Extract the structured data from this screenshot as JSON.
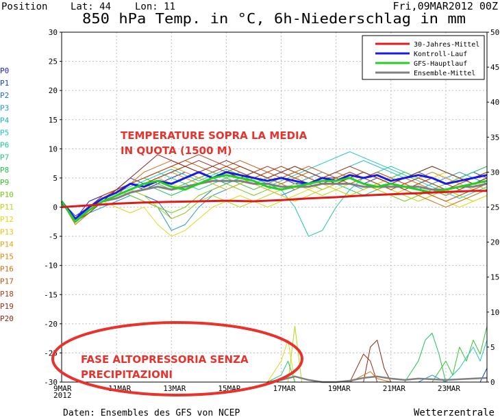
{
  "header": {
    "position_label": "Position",
    "lat_label": "Lat: 44",
    "lon_label": "Lon: 11",
    "date_label": "Fri,09MAR2012 00Z",
    "title": "850 hPa Temp. in °C, 6h-Niederschlag in mm"
  },
  "footer": {
    "source": "Daten: Ensembles des GFS von NCEP",
    "brand": "Wetterzentrale"
  },
  "annotations": {
    "temp_line1": "TEMPERATURE SOPRA LA MEDIA",
    "temp_line2": "IN QUOTA (1500 M)",
    "precip_line1": "FASE ALTOPRESSORIA SENZA",
    "precip_line2": "PRECIPITAZIONI",
    "color": "#e8322b"
  },
  "members": [
    {
      "name": "P0",
      "color": "#1a1ad6"
    },
    {
      "name": "P1",
      "color": "#1a3cd6"
    },
    {
      "name": "P2",
      "color": "#1f6bd6"
    },
    {
      "name": "P3",
      "color": "#1f95d6"
    },
    {
      "name": "P4",
      "color": "#18b4d0"
    },
    {
      "name": "P5",
      "color": "#19c8c0"
    },
    {
      "name": "P6",
      "color": "#1bc8a0"
    },
    {
      "name": "P7",
      "color": "#1fc878"
    },
    {
      "name": "P8",
      "color": "#22c450"
    },
    {
      "name": "P9",
      "color": "#36c428"
    },
    {
      "name": "P10",
      "color": "#74cc16"
    },
    {
      "name": "P11",
      "color": "#b8d814"
    },
    {
      "name": "P12",
      "color": "#e4d812"
    },
    {
      "name": "P13",
      "color": "#e8c210"
    },
    {
      "name": "P14",
      "color": "#e8a60e"
    },
    {
      "name": "P15",
      "color": "#e0880c"
    },
    {
      "name": "P16",
      "color": "#d66c0c"
    },
    {
      "name": "P17",
      "color": "#c8520e"
    },
    {
      "name": "P18",
      "color": "#b63c12"
    },
    {
      "name": "P19",
      "color": "#a42c14"
    },
    {
      "name": "P20",
      "color": "#902216"
    }
  ],
  "chart_data": {
    "type": "line",
    "x_unit": "days since 9 MAR 2012 00Z",
    "x_range": [
      0,
      15.5
    ],
    "x_ticks": [
      {
        "label": "9MAR",
        "label2": "2012",
        "x": 0
      },
      {
        "label": "11MAR",
        "x": 2
      },
      {
        "label": "13MAR",
        "x": 4
      },
      {
        "label": "15MAR",
        "x": 6
      },
      {
        "label": "17MAR",
        "x": 8
      },
      {
        "label": "19MAR",
        "x": 10
      },
      {
        "label": "21MAR",
        "x": 12
      },
      {
        "label": "23MAR",
        "x": 14
      }
    ],
    "y_left": {
      "min": -30,
      "max": 30,
      "step": 5
    },
    "y_right": {
      "min": 0,
      "max": 50,
      "step": 5
    },
    "legend": {
      "position": "top-right",
      "entries": [
        {
          "label": "30-Jahres-Mittel",
          "color": "#e01a1a"
        },
        {
          "label": "Kontroll-Lauf",
          "color": "#1a1ae0"
        },
        {
          "label": "GFS-Hauptlauf",
          "color": "#22d022"
        },
        {
          "label": "Ensemble-Mittel",
          "color": "#808080"
        }
      ]
    },
    "series": {
      "climatology": {
        "x": [
          0,
          1,
          2,
          3,
          4,
          5,
          6,
          7,
          8,
          9,
          10,
          11,
          12,
          13,
          14,
          15,
          15.5
        ],
        "y": [
          0,
          0.3,
          0.6,
          0.8,
          0.9,
          1.0,
          1.1,
          1.0,
          1.2,
          1.5,
          1.7,
          2.0,
          2.2,
          2.4,
          2.6,
          2.8,
          2.8
        ]
      },
      "control": {
        "x": [
          0,
          0.5,
          1,
          1.5,
          2,
          2.5,
          3,
          3.5,
          4,
          4.5,
          5,
          5.5,
          6,
          6.5,
          7,
          7.5,
          8,
          8.5,
          9,
          9.5,
          10,
          10.5,
          11,
          11.5,
          12,
          12.5,
          13,
          13.5,
          14,
          14.5,
          15,
          15.5
        ],
        "y": [
          1,
          -2,
          0,
          1.5,
          2.5,
          4,
          3.5,
          4.5,
          4,
          5,
          6,
          5,
          6,
          5.5,
          5,
          4.5,
          5,
          4.5,
          4,
          5,
          4.5,
          5.5,
          5,
          5.5,
          4.5,
          5,
          5.5,
          5,
          4,
          4.5,
          5,
          5.5
        ]
      },
      "operational": {
        "x": [
          0,
          0.5,
          1,
          1.5,
          2,
          2.5,
          3,
          3.5,
          4,
          4.5,
          5,
          5.5,
          6,
          6.5,
          7,
          7.5,
          8,
          8.5,
          9,
          9.5,
          10,
          10.5,
          11,
          11.5,
          12,
          12.5,
          13,
          13.5,
          14,
          14.5,
          15,
          15.5
        ],
        "y": [
          1,
          -2.5,
          -0.5,
          1,
          2,
          3,
          4,
          4.5,
          3.5,
          3,
          4,
          5,
          5.5,
          5,
          4.5,
          3.5,
          3,
          3.5,
          4,
          4.5,
          4.5,
          5,
          4,
          3.5,
          4,
          3.5,
          3,
          2.5,
          3,
          3.5,
          4,
          4.5
        ]
      },
      "ensemble_mean": {
        "x": [
          0,
          0.5,
          1,
          1.5,
          2,
          2.5,
          3,
          3.5,
          4,
          4.5,
          5,
          5.5,
          6,
          6.5,
          7,
          7.5,
          8,
          8.5,
          9,
          9.5,
          10,
          10.5,
          11,
          11.5,
          12,
          12.5,
          13,
          13.5,
          14,
          14.5,
          15,
          15.5
        ],
        "y": [
          1,
          -2.5,
          -0.5,
          1,
          1.5,
          2.5,
          3,
          3.5,
          3,
          3.5,
          4,
          4.5,
          4.5,
          4.5,
          4,
          4,
          3.5,
          3.5,
          3.5,
          4,
          4,
          4,
          3.5,
          3.5,
          3.5,
          3.5,
          3.5,
          3,
          3,
          3.5,
          3.5,
          4
        ]
      },
      "member_temps": [
        [
          0.5,
          -2,
          1,
          2,
          3,
          4,
          3,
          4,
          5,
          6,
          5,
          6,
          7,
          6,
          5,
          4,
          5,
          4,
          4,
          5,
          5,
          6,
          5,
          6,
          5,
          4,
          5,
          6,
          5,
          4,
          5,
          6
        ],
        [
          1,
          -1.5,
          0,
          2,
          3,
          5,
          4,
          5,
          4,
          5,
          6,
          5,
          4,
          5,
          6,
          5,
          4,
          3,
          4,
          5,
          6,
          5,
          4,
          5,
          4,
          5,
          6,
          5,
          4,
          5,
          6,
          5
        ],
        [
          1,
          -2.5,
          -1,
          1,
          2,
          3,
          2,
          1,
          -2,
          -1,
          1,
          3,
          4,
          5,
          4,
          3,
          2,
          3,
          4,
          3,
          4,
          5,
          4,
          3,
          4,
          5,
          4,
          3,
          2,
          3,
          4,
          5
        ],
        [
          1,
          -3,
          -1,
          0,
          1,
          2,
          1,
          0,
          -4,
          -3,
          0,
          2,
          3,
          4,
          5,
          4,
          3,
          4,
          5,
          6,
          5,
          4,
          3,
          4,
          5,
          4,
          3,
          4,
          5,
          6,
          5,
          4
        ],
        [
          1,
          -2,
          0,
          1,
          2,
          3,
          4,
          5,
          6,
          7,
          6,
          5,
          6,
          7,
          6,
          5,
          6,
          7,
          6,
          5,
          6,
          7,
          8,
          7,
          6,
          5,
          6,
          7,
          6,
          5,
          6,
          7
        ],
        [
          1,
          -2.5,
          -0.5,
          1.5,
          2.5,
          3.5,
          4.5,
          5.5,
          6.5,
          5.5,
          4.5,
          5.5,
          6.5,
          5.5,
          4.5,
          3.5,
          4.5,
          5.5,
          6.5,
          7.5,
          8.5,
          9.5,
          8.5,
          7.5,
          6.5,
          5.5,
          4.5,
          3.5,
          2.5,
          1.5,
          2.5,
          3.5
        ],
        [
          1,
          -2,
          0,
          2,
          3,
          4,
          5,
          6,
          5,
          4,
          3,
          4,
          5,
          6,
          5,
          4,
          3,
          0,
          -5,
          -4,
          0,
          3,
          5,
          6,
          7,
          6,
          5,
          4,
          3,
          2,
          3,
          4
        ],
        [
          1,
          -2.5,
          -1,
          1,
          2,
          3,
          4,
          5,
          6,
          7,
          6,
          5,
          4,
          5,
          6,
          5,
          4,
          5,
          6,
          5,
          4,
          3,
          2,
          3,
          4,
          5,
          6,
          7,
          6,
          5,
          4,
          5
        ],
        [
          1,
          -2,
          0,
          1,
          2,
          3,
          4,
          3,
          2,
          3,
          4,
          5,
          6,
          5,
          4,
          5,
          6,
          7,
          6,
          5,
          4,
          5,
          6,
          5,
          4,
          3,
          2,
          3,
          4,
          5,
          6,
          7
        ],
        [
          1,
          -3,
          -1,
          1,
          3,
          4,
          5,
          4,
          3,
          4,
          5,
          6,
          5,
          4,
          3,
          4,
          5,
          6,
          5,
          4,
          3,
          2,
          3,
          4,
          5,
          6,
          5,
          4,
          3,
          4,
          5,
          6
        ],
        [
          1,
          -2,
          0,
          2,
          3,
          2,
          1,
          0,
          -1,
          0,
          2,
          3,
          4,
          3,
          2,
          3,
          4,
          5,
          4,
          3,
          4,
          5,
          4,
          3,
          2,
          1,
          2,
          3,
          4,
          5,
          4,
          3
        ],
        [
          1,
          -2.5,
          -0.5,
          1,
          2,
          3,
          2,
          0,
          -2,
          -1,
          1,
          2,
          1,
          0,
          1,
          2,
          3,
          4,
          3,
          2,
          3,
          4,
          5,
          4,
          3,
          2,
          1,
          2,
          3,
          2,
          1,
          2
        ],
        [
          1,
          -2,
          0,
          1,
          0,
          -1,
          0,
          -3,
          -5,
          -4,
          -2,
          0,
          1,
          2,
          1,
          0,
          1,
          2,
          3,
          4,
          3,
          2,
          3,
          4,
          5,
          4,
          3,
          2,
          1,
          0,
          1,
          2
        ],
        [
          1,
          -2.5,
          -1,
          1,
          2,
          3,
          4,
          5,
          4,
          3,
          4,
          5,
          6,
          5,
          4,
          3,
          2,
          1,
          2,
          3,
          4,
          5,
          4,
          3,
          2,
          3,
          4,
          5,
          6,
          5,
          4,
          3
        ],
        [
          1,
          -2,
          0,
          2,
          3,
          4,
          5,
          6,
          7,
          6,
          5,
          4,
          3,
          4,
          5,
          6,
          7,
          6,
          5,
          4,
          5,
          6,
          5,
          4,
          3,
          4,
          5,
          6,
          5,
          4,
          3,
          4
        ],
        [
          1,
          -3,
          -1,
          1,
          2,
          3,
          4,
          5,
          6,
          5,
          4,
          5,
          6,
          7,
          6,
          5,
          4,
          3,
          4,
          5,
          6,
          5,
          4,
          3,
          4,
          5,
          4,
          3,
          2,
          3,
          4,
          5
        ],
        [
          1,
          -2,
          0,
          1,
          2,
          4,
          6,
          7,
          8,
          7,
          6,
          5,
          6,
          7,
          6,
          5,
          4,
          5,
          6,
          5,
          4,
          5,
          6,
          5,
          4,
          3,
          2,
          1,
          0,
          1,
          2,
          3
        ],
        [
          1,
          -2.5,
          -0.5,
          1.5,
          3,
          4,
          5,
          6,
          7,
          8,
          7,
          6,
          7,
          8,
          7,
          6,
          5,
          6,
          7,
          6,
          5,
          4,
          5,
          6,
          5,
          4,
          3,
          2,
          1,
          2,
          3,
          4
        ],
        [
          1,
          -2,
          0,
          2,
          3,
          4,
          5,
          6,
          7,
          8,
          9,
          8,
          7,
          6,
          5,
          6,
          7,
          6,
          5,
          4,
          5,
          6,
          5,
          4,
          3,
          4,
          5,
          4,
          3,
          4,
          5,
          6
        ],
        [
          1,
          -2.5,
          -1,
          1,
          2,
          3,
          4,
          5,
          6,
          7,
          8,
          7,
          6,
          5,
          6,
          7,
          6,
          5,
          4,
          5,
          6,
          7,
          6,
          5,
          4,
          3,
          4,
          5,
          4,
          3,
          4,
          5
        ],
        [
          1,
          -2,
          0,
          1,
          3,
          5,
          7,
          9,
          8,
          7,
          6,
          7,
          8,
          7,
          6,
          5,
          6,
          7,
          6,
          5,
          4,
          5,
          6,
          5,
          4,
          5,
          6,
          7,
          6,
          5,
          4,
          5
        ]
      ],
      "precip_members": [
        {
          "member": 12,
          "x": [
            7.5,
            8,
            8.25,
            8.5,
            8.75,
            9
          ],
          "y": [
            0,
            3,
            6,
            0,
            0,
            0
          ]
        },
        {
          "member": 19,
          "x": [
            10.5,
            10.75,
            11,
            11.25,
            11.5
          ],
          "y": [
            0,
            2,
            4,
            3,
            0
          ]
        },
        {
          "member": 20,
          "x": [
            11,
            11.25,
            11.5,
            11.75,
            12
          ],
          "y": [
            0,
            5,
            6,
            2,
            0
          ]
        },
        {
          "member": 11,
          "x": [
            8,
            8.25,
            8.5,
            8.75,
            9
          ],
          "y": [
            0,
            0,
            8,
            0,
            0
          ]
        },
        {
          "member": 7,
          "x": [
            7.5,
            8,
            8.25,
            8.5
          ],
          "y": [
            0,
            1,
            3,
            0
          ]
        },
        {
          "member": 9,
          "x": [
            13.5,
            14,
            14.25,
            14.5,
            14.75,
            15,
            15.25,
            15.5
          ],
          "y": [
            0,
            3,
            1,
            5,
            3,
            6,
            4,
            8
          ]
        },
        {
          "member": 8,
          "x": [
            12.5,
            13,
            13.25,
            13.5,
            13.75,
            14
          ],
          "y": [
            0,
            3,
            6,
            7,
            4,
            0
          ]
        },
        {
          "member": 5,
          "x": [
            14,
            14.5,
            15,
            15.25,
            15.5
          ],
          "y": [
            0,
            2,
            5,
            3,
            6
          ]
        },
        {
          "member": 1,
          "x": [
            14.75,
            15,
            15.25,
            15.5
          ],
          "y": [
            0,
            0,
            0,
            2
          ]
        },
        {
          "member": 16,
          "x": [
            10.5,
            11,
            11.25,
            11.5,
            12
          ],
          "y": [
            0,
            1,
            1.5,
            0.5,
            0
          ]
        },
        {
          "member": 3,
          "x": [
            13,
            13.5,
            13.75,
            14
          ],
          "y": [
            0,
            1,
            0.5,
            0
          ]
        }
      ],
      "precip_mean": {
        "x": [
          7.5,
          8,
          8.5,
          9,
          9.5,
          10,
          10.5,
          11,
          11.5,
          12,
          12.5,
          13,
          13.5,
          14,
          14.5,
          15,
          15.5
        ],
        "y": [
          0,
          0.3,
          0.8,
          0.3,
          0,
          0,
          0.2,
          0.6,
          0.8,
          0.5,
          0.3,
          0.5,
          0.4,
          0.3,
          0.4,
          0.5,
          0.6
        ]
      }
    }
  }
}
